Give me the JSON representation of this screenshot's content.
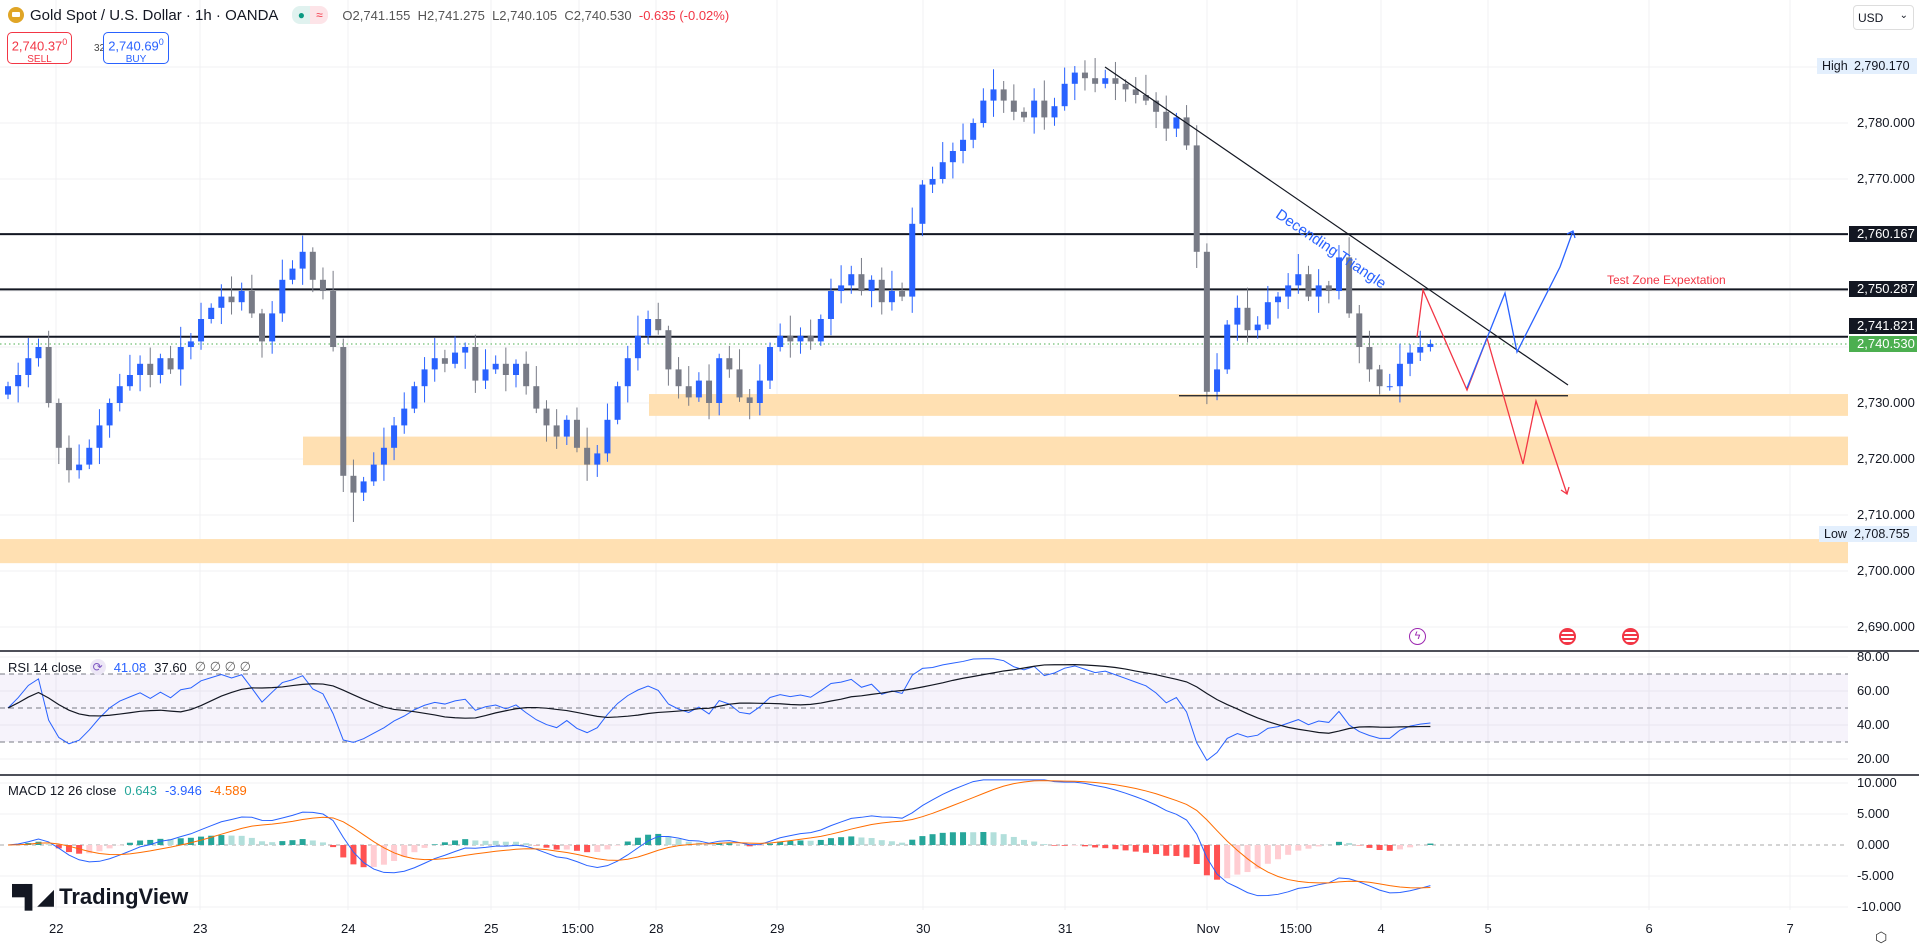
{
  "header": {
    "title": "Gold Spot / U.S. Dollar · 1h · OANDA",
    "open": "O2,741.155",
    "high": "H2,741.275",
    "low": "L2,740.105",
    "close": "C2,740.530",
    "change": "-0.635 (-0.02%)",
    "market_open_icon": "dot",
    "delay_icon": "≈"
  },
  "trade": {
    "sell_price": "2,740.37",
    "sell_sup": "0",
    "sell_label": "SELL",
    "spread": "32.0",
    "buy_price": "2,740.69",
    "buy_sup": "0",
    "buy_label": "BUY"
  },
  "currency": {
    "label": "USD",
    "chevron": "⌄"
  },
  "colors": {
    "up": "#2962ff",
    "down": "#787b86",
    "level": "#131722",
    "zone": "#ffe0b2",
    "current": "#4caf50",
    "bear": "#f23645",
    "bull": "#2962ff"
  },
  "price_axis": {
    "ticks": [
      "2,780.000",
      "2,770.000",
      "2,730.000",
      "2,720.000",
      "2,710.000",
      "2,700.000",
      "2,690.000"
    ],
    "high_label": "High",
    "high_value": "2,790.170",
    "low_label": "Low",
    "low_value": "2,708.755",
    "levels": [
      "2,760.167",
      "2,750.287",
      "2,741.821"
    ],
    "current": "2,740.530"
  },
  "annotations": {
    "triangle": "Decending Triangle",
    "test_zone": "Test  Zone Expextation"
  },
  "rsi": {
    "label": "RSI 14 close",
    "value": "41.08",
    "ma": "37.60",
    "extras": "∅ ∅ ∅ ∅",
    "ticks": [
      "80.00",
      "60.00",
      "40.00",
      "20.00"
    ]
  },
  "macd": {
    "label": "MACD 12 26 close",
    "hist": "0.643",
    "macd": "-3.946",
    "signal": "-4.589",
    "ticks": [
      "10.000",
      "5.000",
      "0.000",
      "-5.000",
      "-10.000"
    ]
  },
  "time_axis": [
    "22",
    "23",
    "24",
    "25",
    "15:00",
    "28",
    "29",
    "30",
    "31",
    "Nov",
    "15:00",
    "4",
    "5",
    "6",
    "7"
  ],
  "brand": {
    "name": "TradingView"
  },
  "events": [
    "lightning-event",
    "us-flag-event",
    "us-flag-event"
  ],
  "chart_data": {
    "type": "candlestick",
    "symbol": "XAUUSD",
    "interval": "1h",
    "ylim": [
      2685,
      2795
    ],
    "closes": [
      2733,
      2735,
      2738,
      2740,
      2730,
      2722,
      2718,
      2719,
      2722,
      2726,
      2730,
      2733,
      2735,
      2737,
      2735,
      2738,
      2736,
      2740,
      2741,
      2745,
      2747,
      2749,
      2748,
      2750,
      2746,
      2741,
      2746,
      2752,
      2754,
      2757,
      2752,
      2750,
      2740,
      2717,
      2714,
      2716,
      2719,
      2722,
      2726,
      2729,
      2733,
      2736,
      2738,
      2737,
      2739,
      2740,
      2734,
      2736,
      2737,
      2735,
      2737,
      2733,
      2729,
      2726,
      2724,
      2727,
      2722,
      2719,
      2721,
      2727,
      2733,
      2738,
      2742,
      2745,
      2743,
      2736,
      2733,
      2731,
      2734,
      2730,
      2738,
      2736,
      2731,
      2730,
      2734,
      2740,
      2742,
      2741,
      2742,
      2741,
      2745,
      2750,
      2751,
      2753,
      2750,
      2752,
      2748,
      2750,
      2749,
      2762,
      2769,
      2770,
      2773,
      2775,
      2777,
      2780,
      2784,
      2786,
      2784,
      2782,
      2781,
      2784,
      2781,
      2783,
      2787,
      2789,
      2788,
      2787,
      2788,
      2787,
      2786,
      2785,
      2784,
      2782,
      2779,
      2781,
      2776,
      2757,
      2732,
      2736,
      2744,
      2747,
      2743,
      2744,
      2748,
      2749,
      2751,
      2753,
      2749,
      2751,
      2750,
      2756,
      2746,
      2740,
      2736,
      2733,
      2733,
      2737,
      2739,
      2740,
      2740.53
    ],
    "resistance_levels": [
      2760.167,
      2750.287,
      2741.821
    ],
    "current_price": 2740.53,
    "period_high": 2790.17,
    "period_low": 2708.755,
    "zones": [
      [
        2727.7,
        2731.6
      ],
      [
        2718.9,
        2724
      ],
      [
        2701.4,
        2705.7
      ]
    ],
    "triangle_support": 2731.3
  }
}
